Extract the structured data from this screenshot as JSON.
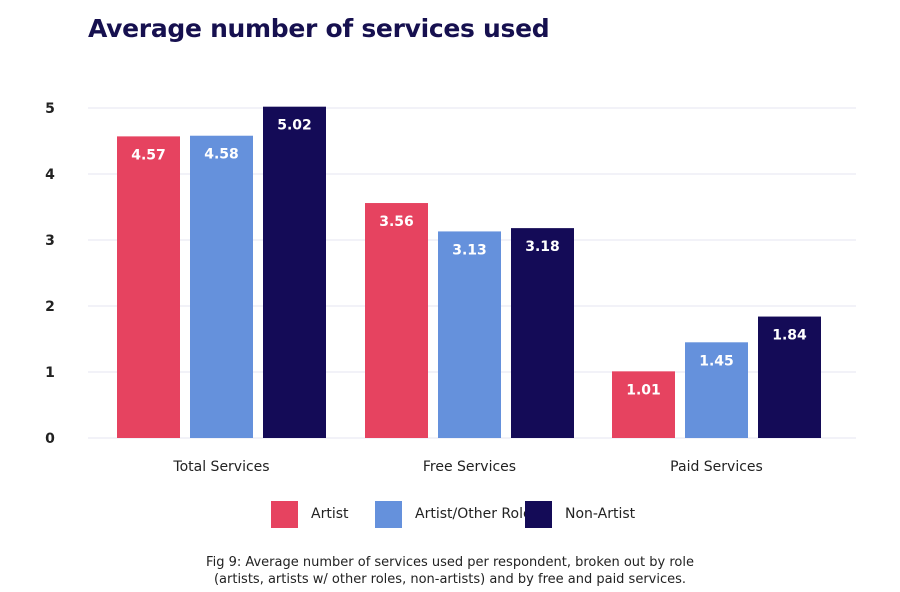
{
  "chart_data": {
    "type": "bar",
    "title": "Average number of services used",
    "categories": [
      "Total Services",
      "Free Services",
      "Paid Services"
    ],
    "series": [
      {
        "name": "Artist",
        "color": "#e64360",
        "values": [
          4.57,
          3.56,
          1.01
        ]
      },
      {
        "name": "Artist/Other Role",
        "color": "#6591dc",
        "values": [
          4.58,
          3.13,
          1.45
        ]
      },
      {
        "name": "Non-Artist",
        "color": "#140b57",
        "values": [
          5.02,
          3.18,
          1.84
        ]
      }
    ],
    "yticks": [
      0,
      1,
      2,
      3,
      4,
      5
    ],
    "ylim": [
      0,
      5.3
    ],
    "grid": true,
    "legend": "bottom",
    "caption_lines": [
      "Fig 9: Average number of services used per respondent, broken out by role",
      "(artists, artists w/ other roles, non-artists) and by free and paid services."
    ]
  }
}
